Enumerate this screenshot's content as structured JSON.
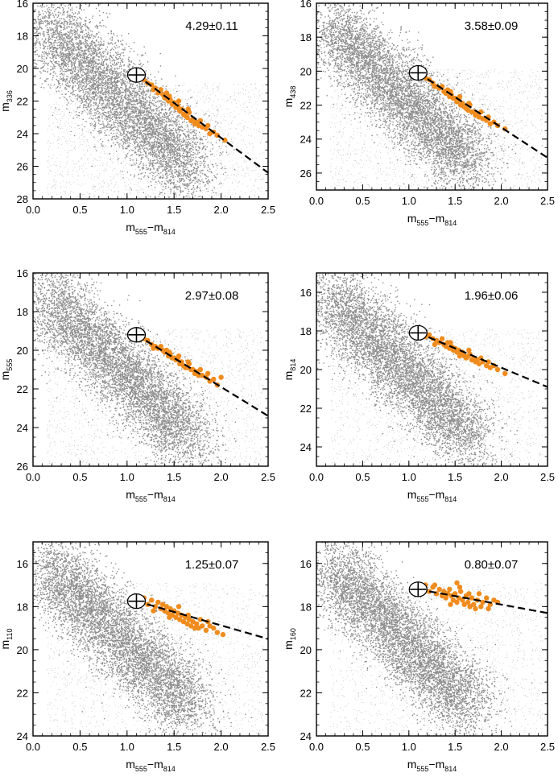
{
  "colors": {
    "scatter_dark": "#8c8c8c",
    "scatter_light": "#c8c8c8",
    "highlight": "#f08c1e",
    "fit_line": "#000000",
    "frame": "#000000"
  },
  "chart_data": [
    {
      "type": "scatter",
      "panel": "top-left",
      "ylabel": {
        "base": "m",
        "sub": "336"
      },
      "xlabel": {
        "base": "m",
        "sub1": "555",
        "dash": "−",
        "base2": "m",
        "sub2": "814"
      },
      "xlim": [
        0.0,
        2.5
      ],
      "ylim": [
        28,
        16
      ],
      "xticks": [
        "0.0",
        "0.5",
        "1.0",
        "1.5",
        "2.0",
        "2.5"
      ],
      "yticks": [
        "16",
        "18",
        "20",
        "22",
        "24",
        "26",
        "28"
      ],
      "slope_label": "4.29±0.11",
      "fit_line": {
        "x": [
          1.1,
          2.5
        ],
        "y": [
          20.4,
          26.4
        ]
      },
      "clump_center": {
        "x": 1.1,
        "y": 20.4
      },
      "highlight_points": [
        [
          1.18,
          20.7
        ],
        [
          1.22,
          20.9
        ],
        [
          1.26,
          21.0
        ],
        [
          1.3,
          21.2
        ],
        [
          1.33,
          21.5
        ],
        [
          1.36,
          21.3
        ],
        [
          1.38,
          21.6
        ],
        [
          1.4,
          21.8
        ],
        [
          1.42,
          21.5
        ],
        [
          1.44,
          22.0
        ],
        [
          1.46,
          21.9
        ],
        [
          1.48,
          22.2
        ],
        [
          1.5,
          22.1
        ],
        [
          1.52,
          22.4
        ],
        [
          1.54,
          22.3
        ],
        [
          1.56,
          22.6
        ],
        [
          1.58,
          22.5
        ],
        [
          1.6,
          22.8
        ],
        [
          1.62,
          22.9
        ],
        [
          1.64,
          23.0
        ],
        [
          1.66,
          22.7
        ],
        [
          1.68,
          23.2
        ],
        [
          1.7,
          23.1
        ],
        [
          1.72,
          23.4
        ],
        [
          1.74,
          23.3
        ],
        [
          1.76,
          23.5
        ],
        [
          1.8,
          23.6
        ],
        [
          1.84,
          23.7
        ],
        [
          1.88,
          24.0
        ],
        [
          1.92,
          23.9
        ],
        [
          1.96,
          24.1
        ],
        [
          2.04,
          24.4
        ],
        [
          1.28,
          21.3
        ],
        [
          1.45,
          21.7
        ],
        [
          1.55,
          22.0
        ],
        [
          1.65,
          22.5
        ],
        [
          1.78,
          23.2
        ],
        [
          1.86,
          23.5
        ]
      ]
    },
    {
      "type": "scatter",
      "panel": "top-right",
      "ylabel": {
        "base": "m",
        "sub": "438"
      },
      "xlabel": {
        "base": "m",
        "sub1": "555",
        "dash": "−",
        "base2": "m",
        "sub2": "814"
      },
      "xlim": [
        0.0,
        2.5
      ],
      "ylim": [
        27,
        16
      ],
      "xticks": [
        "0.0",
        "0.5",
        "1.0",
        "1.5",
        "2.0",
        "2.5"
      ],
      "yticks": [
        "16",
        "18",
        "20",
        "22",
        "24",
        "26"
      ],
      "slope_label": "3.58±0.09",
      "fit_line": {
        "x": [
          1.1,
          2.5
        ],
        "y": [
          20.1,
          25.1
        ]
      },
      "clump_center": {
        "x": 1.1,
        "y": 20.1
      },
      "highlight_points": [
        [
          1.18,
          20.4
        ],
        [
          1.22,
          20.5
        ],
        [
          1.26,
          20.7
        ],
        [
          1.3,
          20.9
        ],
        [
          1.33,
          21.0
        ],
        [
          1.36,
          20.9
        ],
        [
          1.38,
          21.2
        ],
        [
          1.4,
          21.3
        ],
        [
          1.42,
          21.1
        ],
        [
          1.44,
          21.5
        ],
        [
          1.46,
          21.4
        ],
        [
          1.48,
          21.6
        ],
        [
          1.5,
          21.6
        ],
        [
          1.52,
          21.8
        ],
        [
          1.54,
          21.7
        ],
        [
          1.56,
          22.0
        ],
        [
          1.58,
          21.9
        ],
        [
          1.6,
          22.1
        ],
        [
          1.62,
          22.2
        ],
        [
          1.64,
          22.3
        ],
        [
          1.66,
          22.0
        ],
        [
          1.68,
          22.4
        ],
        [
          1.7,
          22.4
        ],
        [
          1.72,
          22.6
        ],
        [
          1.74,
          22.5
        ],
        [
          1.76,
          22.7
        ],
        [
          1.8,
          22.8
        ],
        [
          1.84,
          22.9
        ],
        [
          1.88,
          23.1
        ],
        [
          1.92,
          23.0
        ],
        [
          1.96,
          23.2
        ],
        [
          2.04,
          23.4
        ],
        [
          1.28,
          20.9
        ],
        [
          1.45,
          21.2
        ],
        [
          1.55,
          21.5
        ],
        [
          1.65,
          21.9
        ],
        [
          1.78,
          22.4
        ],
        [
          1.86,
          22.7
        ]
      ]
    },
    {
      "type": "scatter",
      "panel": "middle-left",
      "ylabel": {
        "base": "m",
        "sub": "555"
      },
      "xlabel": {
        "base": "m",
        "sub1": "555",
        "dash": "−",
        "base2": "m",
        "sub2": "814"
      },
      "xlim": [
        0.0,
        2.5
      ],
      "ylim": [
        26,
        16
      ],
      "xticks": [
        "0.0",
        "0.5",
        "1.0",
        "1.5",
        "2.0",
        "2.5"
      ],
      "yticks": [
        "16",
        "18",
        "20",
        "22",
        "24",
        "26"
      ],
      "slope_label": "2.97±0.08",
      "fit_line": {
        "x": [
          1.1,
          2.5
        ],
        "y": [
          19.2,
          23.4
        ]
      },
      "clump_center": {
        "x": 1.1,
        "y": 19.2
      },
      "highlight_points": [
        [
          1.18,
          19.4
        ],
        [
          1.22,
          19.5
        ],
        [
          1.26,
          19.7
        ],
        [
          1.3,
          19.8
        ],
        [
          1.33,
          19.9
        ],
        [
          1.36,
          19.8
        ],
        [
          1.38,
          20.0
        ],
        [
          1.4,
          20.1
        ],
        [
          1.42,
          20.0
        ],
        [
          1.44,
          20.3
        ],
        [
          1.46,
          20.2
        ],
        [
          1.48,
          20.4
        ],
        [
          1.5,
          20.4
        ],
        [
          1.52,
          20.5
        ],
        [
          1.54,
          20.4
        ],
        [
          1.56,
          20.7
        ],
        [
          1.58,
          20.6
        ],
        [
          1.6,
          20.8
        ],
        [
          1.62,
          20.9
        ],
        [
          1.64,
          20.9
        ],
        [
          1.66,
          20.7
        ],
        [
          1.68,
          21.0
        ],
        [
          1.7,
          21.0
        ],
        [
          1.72,
          21.2
        ],
        [
          1.74,
          21.1
        ],
        [
          1.76,
          21.3
        ],
        [
          1.8,
          21.3
        ],
        [
          1.84,
          21.4
        ],
        [
          1.88,
          21.6
        ],
        [
          1.92,
          21.5
        ],
        [
          1.96,
          21.8
        ],
        [
          2.0,
          21.4
        ],
        [
          1.28,
          19.9
        ],
        [
          1.45,
          20.1
        ],
        [
          1.55,
          20.3
        ],
        [
          1.65,
          20.6
        ],
        [
          1.78,
          21.0
        ],
        [
          1.86,
          21.2
        ]
      ]
    },
    {
      "type": "scatter",
      "panel": "middle-right",
      "ylabel": {
        "base": "m",
        "sub": "814"
      },
      "xlabel": {
        "base": "m",
        "sub1": "555",
        "dash": "−",
        "base2": "m",
        "sub2": "814"
      },
      "xlim": [
        0.0,
        2.5
      ],
      "ylim": [
        25,
        15
      ],
      "xticks": [
        "0.0",
        "0.5",
        "1.0",
        "1.5",
        "2.0",
        "2.5"
      ],
      "yticks": [
        "16",
        "18",
        "20",
        "22",
        "24"
      ],
      "slope_label": "1.96±0.06",
      "fit_line": {
        "x": [
          1.1,
          2.5
        ],
        "y": [
          18.1,
          20.9
        ]
      },
      "clump_center": {
        "x": 1.1,
        "y": 18.1
      },
      "highlight_points": [
        [
          1.18,
          18.3
        ],
        [
          1.22,
          18.2
        ],
        [
          1.26,
          18.4
        ],
        [
          1.3,
          18.5
        ],
        [
          1.33,
          18.6
        ],
        [
          1.36,
          18.4
        ],
        [
          1.38,
          18.7
        ],
        [
          1.4,
          18.8
        ],
        [
          1.42,
          18.6
        ],
        [
          1.44,
          18.9
        ],
        [
          1.46,
          18.8
        ],
        [
          1.48,
          19.0
        ],
        [
          1.5,
          18.9
        ],
        [
          1.52,
          19.1
        ],
        [
          1.54,
          19.0
        ],
        [
          1.56,
          19.2
        ],
        [
          1.58,
          19.1
        ],
        [
          1.6,
          19.3
        ],
        [
          1.62,
          19.4
        ],
        [
          1.64,
          19.3
        ],
        [
          1.66,
          19.2
        ],
        [
          1.68,
          19.5
        ],
        [
          1.7,
          19.4
        ],
        [
          1.72,
          19.6
        ],
        [
          1.74,
          19.5
        ],
        [
          1.76,
          19.7
        ],
        [
          1.8,
          19.6
        ],
        [
          1.84,
          19.8
        ],
        [
          1.88,
          19.9
        ],
        [
          1.92,
          19.8
        ],
        [
          1.96,
          20.0
        ],
        [
          2.04,
          20.2
        ],
        [
          1.28,
          18.7
        ],
        [
          1.45,
          18.6
        ],
        [
          1.55,
          19.3
        ],
        [
          1.65,
          19.0
        ],
        [
          1.78,
          19.4
        ],
        [
          1.86,
          19.6
        ]
      ]
    },
    {
      "type": "scatter",
      "panel": "bottom-left",
      "ylabel": {
        "base": "m",
        "sub": "110"
      },
      "xlabel": {
        "base": "m",
        "sub1": "555",
        "dash": "−",
        "base2": "m",
        "sub2": "814"
      },
      "xlim": [
        0.0,
        2.5
      ],
      "ylim": [
        24,
        15
      ],
      "xticks": [
        "0.0",
        "0.5",
        "1.0",
        "1.5",
        "2.0",
        "2.5"
      ],
      "yticks": [
        "16",
        "18",
        "20",
        "22",
        "24"
      ],
      "slope_label": "1.25±0.07",
      "fit_line": {
        "x": [
          1.1,
          2.5
        ],
        "y": [
          17.75,
          19.5
        ]
      },
      "clump_center": {
        "x": 1.1,
        "y": 17.75
      },
      "highlight_points": [
        [
          1.18,
          17.6
        ],
        [
          1.22,
          17.9
        ],
        [
          1.26,
          17.7
        ],
        [
          1.3,
          18.0
        ],
        [
          1.33,
          17.8
        ],
        [
          1.36,
          18.1
        ],
        [
          1.38,
          17.9
        ],
        [
          1.4,
          18.2
        ],
        [
          1.42,
          18.0
        ],
        [
          1.44,
          18.3
        ],
        [
          1.46,
          18.1
        ],
        [
          1.48,
          18.4
        ],
        [
          1.5,
          18.2
        ],
        [
          1.52,
          18.5
        ],
        [
          1.54,
          18.3
        ],
        [
          1.56,
          18.6
        ],
        [
          1.58,
          18.4
        ],
        [
          1.6,
          18.7
        ],
        [
          1.62,
          18.5
        ],
        [
          1.64,
          18.8
        ],
        [
          1.66,
          18.6
        ],
        [
          1.68,
          18.9
        ],
        [
          1.7,
          18.7
        ],
        [
          1.72,
          19.0
        ],
        [
          1.74,
          18.8
        ],
        [
          1.76,
          19.0
        ],
        [
          1.8,
          18.9
        ],
        [
          1.84,
          19.1
        ],
        [
          1.88,
          18.9
        ],
        [
          1.92,
          19.0
        ],
        [
          1.96,
          19.2
        ],
        [
          2.02,
          19.3
        ],
        [
          1.28,
          18.2
        ],
        [
          1.45,
          18.5
        ],
        [
          1.55,
          18.0
        ],
        [
          1.65,
          18.4
        ],
        [
          1.78,
          18.6
        ],
        [
          1.86,
          18.7
        ]
      ]
    },
    {
      "type": "scatter",
      "panel": "bottom-right",
      "ylabel": {
        "base": "m",
        "sub": "160"
      },
      "xlabel": {
        "base": "m",
        "sub1": "555",
        "dash": "−",
        "base2": "m",
        "sub2": "814"
      },
      "xlim": [
        0.0,
        2.5
      ],
      "ylim": [
        24,
        15
      ],
      "xticks": [
        "0.0",
        "0.5",
        "1.0",
        "1.5",
        "2.0",
        "2.5"
      ],
      "yticks": [
        "16",
        "18",
        "20",
        "22",
        "24"
      ],
      "slope_label": "0.80±0.07",
      "fit_line": {
        "x": [
          1.1,
          2.5
        ],
        "y": [
          17.2,
          18.3
        ]
      },
      "clump_center": {
        "x": 1.1,
        "y": 17.2
      },
      "highlight_points": [
        [
          1.18,
          17.0
        ],
        [
          1.22,
          17.3
        ],
        [
          1.26,
          17.1
        ],
        [
          1.3,
          17.4
        ],
        [
          1.33,
          17.2
        ],
        [
          1.36,
          17.5
        ],
        [
          1.38,
          17.3
        ],
        [
          1.4,
          17.6
        ],
        [
          1.42,
          17.4
        ],
        [
          1.44,
          17.2
        ],
        [
          1.46,
          17.5
        ],
        [
          1.48,
          17.7
        ],
        [
          1.5,
          17.4
        ],
        [
          1.52,
          17.8
        ],
        [
          1.54,
          17.6
        ],
        [
          1.56,
          17.3
        ],
        [
          1.58,
          17.7
        ],
        [
          1.6,
          17.9
        ],
        [
          1.62,
          17.5
        ],
        [
          1.64,
          17.8
        ],
        [
          1.66,
          18.0
        ],
        [
          1.68,
          17.6
        ],
        [
          1.7,
          17.9
        ],
        [
          1.72,
          18.1
        ],
        [
          1.74,
          17.7
        ],
        [
          1.76,
          17.4
        ],
        [
          1.8,
          17.8
        ],
        [
          1.84,
          17.6
        ],
        [
          1.88,
          17.9
        ],
        [
          1.92,
          17.7
        ],
        [
          1.96,
          17.8
        ],
        [
          1.28,
          17.0
        ],
        [
          1.45,
          17.9
        ],
        [
          1.55,
          17.1
        ],
        [
          1.65,
          17.4
        ],
        [
          1.78,
          18.0
        ],
        [
          1.86,
          18.1
        ],
        [
          1.52,
          16.9
        ]
      ]
    }
  ]
}
